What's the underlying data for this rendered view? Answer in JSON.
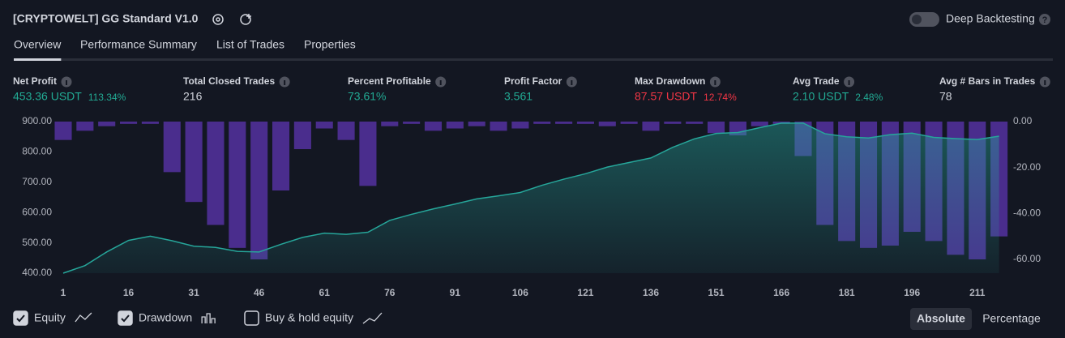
{
  "header": {
    "title": "[CRYPTOWELT] GG Standard V1.0",
    "toggle_label": "Deep Backtesting"
  },
  "tabs": [
    "Overview",
    "Performance Summary",
    "List of Trades",
    "Properties"
  ],
  "active_tab": 0,
  "metrics": [
    {
      "label": "Net Profit",
      "value": "453.36 USDT",
      "sub": "113.34%",
      "tone": "green"
    },
    {
      "label": "Total Closed Trades",
      "value": "216",
      "tone": "neutral"
    },
    {
      "label": "Percent Profitable",
      "value": "73.61%",
      "tone": "green"
    },
    {
      "label": "Profit Factor",
      "value": "3.561",
      "tone": "green"
    },
    {
      "label": "Max Drawdown",
      "value": "87.57 USDT",
      "sub": "12.74%",
      "tone": "red"
    },
    {
      "label": "Avg Trade",
      "value": "2.10 USDT",
      "sub": "2.48%",
      "tone": "green"
    },
    {
      "label": "Avg # Bars in Trades",
      "value": "78",
      "tone": "neutral"
    }
  ],
  "chart_data": {
    "type": "combo",
    "x": [
      1,
      6,
      11,
      16,
      21,
      26,
      31,
      36,
      41,
      46,
      51,
      56,
      61,
      66,
      71,
      76,
      81,
      86,
      91,
      96,
      101,
      106,
      111,
      116,
      121,
      126,
      131,
      136,
      141,
      146,
      151,
      156,
      161,
      166,
      171,
      176,
      181,
      186,
      191,
      196,
      201,
      206,
      211,
      216
    ],
    "series": [
      {
        "name": "Equity",
        "color": "#26a69a",
        "values": [
          400,
          425,
          470,
          508,
          522,
          507,
          489,
          485,
          472,
          470,
          495,
          518,
          532,
          528,
          535,
          574,
          594,
          612,
          628,
          645,
          655,
          666,
          690,
          710,
          728,
          750,
          765,
          780,
          815,
          843,
          861,
          864,
          880,
          895,
          895,
          860,
          850,
          846,
          857,
          862,
          848,
          844,
          841,
          852
        ]
      },
      {
        "name": "Drawdown",
        "color": "#5e35b1",
        "axis": "y2",
        "values": [
          -8,
          -4,
          -2,
          -1,
          -1,
          -22,
          -35,
          -45,
          -55,
          -60,
          -30,
          -12,
          -3,
          -8,
          -28,
          -2,
          -1,
          -4,
          -3,
          -2,
          -4,
          -3,
          -1,
          -1,
          -1,
          -2,
          -1,
          -4,
          -1,
          -1,
          -5,
          -6,
          -2,
          -1,
          -15,
          -45,
          -52,
          -55,
          -54,
          -48,
          -52,
          -58,
          -60,
          -50
        ]
      }
    ],
    "xlim": [
      1,
      217
    ],
    "xticks": [
      1,
      16,
      31,
      46,
      61,
      76,
      91,
      106,
      121,
      136,
      151,
      166,
      181,
      196,
      211
    ],
    "ylim": [
      400,
      900
    ],
    "yticks": [
      {
        "value": 400,
        "label": "400.00"
      },
      {
        "value": 500,
        "label": "500.00"
      },
      {
        "value": 600,
        "label": "600.00"
      },
      {
        "value": 700,
        "label": "700.00"
      },
      {
        "value": 800,
        "label": "800.00"
      },
      {
        "value": 900,
        "label": "900.00"
      }
    ],
    "y2lim": [
      -66,
      0
    ],
    "y2ticks": [
      {
        "value": 0,
        "label": "0.00"
      },
      {
        "value": -20,
        "label": "-20.00"
      },
      {
        "value": -40,
        "label": "-40.00"
      },
      {
        "value": -60,
        "label": "-60.00"
      }
    ]
  },
  "footer": {
    "checked": [
      true,
      true,
      false
    ],
    "buy_hold_label": "Buy & hold equity",
    "buttons": [
      "Absolute",
      "Percentage"
    ],
    "active_button": 0
  }
}
